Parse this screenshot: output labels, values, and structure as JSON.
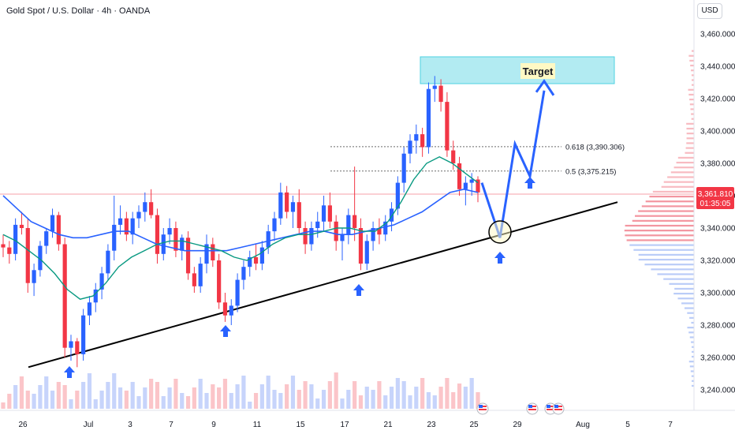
{
  "header": {
    "title": "Gold Spot / U.S. Dollar · 4h · OANDA",
    "currency": "USD"
  },
  "price_axis": {
    "ticks": [
      "3,460.000",
      "3,440.000",
      "3,420.000",
      "3,400.000",
      "3,380.000",
      "3,360.000",
      "3,340.000",
      "3,320.000",
      "3,300.000",
      "3,280.000",
      "3,260.000",
      "3,240.000"
    ],
    "current_price": "3,361.810",
    "countdown": "01:35:05"
  },
  "time_axis": {
    "labels": [
      "26",
      "Jul",
      "3",
      "7",
      "9",
      "11",
      "15",
      "17",
      "21",
      "23",
      "25",
      "29",
      "Aug",
      "5",
      "7"
    ]
  },
  "annotations": {
    "target_label": "Target",
    "fib_618": "0.618 (3,390.306)",
    "fib_05": "0.5 (3,375.215)"
  },
  "colors": {
    "up": "#2962ff",
    "down": "#f23645",
    "ma_fast": "#089981",
    "ma_slow": "#2962ff",
    "target_box": "#b2ebf2",
    "projection": "#2962ff"
  },
  "chart_data": {
    "type": "candlestick",
    "symbol": "XAUUSD",
    "timeframe": "4h",
    "ylim": [
      3235,
      3470
    ],
    "candles": [
      [
        3330,
        3336,
        3322,
        3328
      ],
      [
        3328,
        3332,
        3318,
        3324
      ],
      [
        3324,
        3346,
        3320,
        3342
      ],
      [
        3342,
        3350,
        3336,
        3340
      ],
      [
        3340,
        3346,
        3300,
        3306
      ],
      [
        3306,
        3318,
        3298,
        3314
      ],
      [
        3314,
        3332,
        3310,
        3329
      ],
      [
        3329,
        3340,
        3324,
        3338
      ],
      [
        3338,
        3352,
        3334,
        3348
      ],
      [
        3348,
        3350,
        3326,
        3330
      ],
      [
        3330,
        3334,
        3260,
        3266
      ],
      [
        3266,
        3274,
        3258,
        3270
      ],
      [
        3270,
        3272,
        3254,
        3262
      ],
      [
        3262,
        3290,
        3258,
        3286
      ],
      [
        3286,
        3298,
        3280,
        3294
      ],
      [
        3294,
        3306,
        3288,
        3302
      ],
      [
        3302,
        3316,
        3296,
        3312
      ],
      [
        3312,
        3330,
        3308,
        3326
      ],
      [
        3326,
        3360,
        3320,
        3342
      ],
      [
        3342,
        3354,
        3336,
        3346
      ],
      [
        3346,
        3350,
        3332,
        3336
      ],
      [
        3336,
        3350,
        3330,
        3346
      ],
      [
        3346,
        3354,
        3340,
        3350
      ],
      [
        3350,
        3362,
        3344,
        3356
      ],
      [
        3356,
        3364,
        3346,
        3348
      ],
      [
        3348,
        3352,
        3318,
        3324
      ],
      [
        3324,
        3340,
        3320,
        3336
      ],
      [
        3336,
        3346,
        3330,
        3340
      ],
      [
        3340,
        3344,
        3322,
        3326
      ],
      [
        3326,
        3336,
        3320,
        3334
      ],
      [
        3334,
        3338,
        3308,
        3312
      ],
      [
        3312,
        3316,
        3300,
        3304
      ],
      [
        3304,
        3322,
        3300,
        3318
      ],
      [
        3318,
        3336,
        3312,
        3330
      ],
      [
        3330,
        3334,
        3316,
        3320
      ],
      [
        3320,
        3324,
        3290,
        3294
      ],
      [
        3294,
        3300,
        3282,
        3286
      ],
      [
        3286,
        3296,
        3280,
        3292
      ],
      [
        3292,
        3312,
        3288,
        3308
      ],
      [
        3308,
        3320,
        3302,
        3316
      ],
      [
        3316,
        3326,
        3310,
        3322
      ],
      [
        3322,
        3330,
        3314,
        3318
      ],
      [
        3318,
        3332,
        3314,
        3328
      ],
      [
        3328,
        3342,
        3324,
        3338
      ],
      [
        3338,
        3350,
        3332,
        3346
      ],
      [
        3346,
        3368,
        3342,
        3362
      ],
      [
        3362,
        3366,
        3346,
        3350
      ],
      [
        3350,
        3360,
        3340,
        3356
      ],
      [
        3356,
        3364,
        3336,
        3340
      ],
      [
        3340,
        3344,
        3324,
        3330
      ],
      [
        3330,
        3344,
        3326,
        3340
      ],
      [
        3340,
        3350,
        3334,
        3344
      ],
      [
        3344,
        3360,
        3338,
        3354
      ],
      [
        3354,
        3362,
        3340,
        3344
      ],
      [
        3344,
        3348,
        3326,
        3332
      ],
      [
        3332,
        3340,
        3320,
        3336
      ],
      [
        3336,
        3352,
        3330,
        3348
      ],
      [
        3348,
        3378,
        3332,
        3340
      ],
      [
        3340,
        3346,
        3314,
        3318
      ],
      [
        3318,
        3336,
        3314,
        3332
      ],
      [
        3332,
        3344,
        3326,
        3340
      ],
      [
        3340,
        3346,
        3330,
        3336
      ],
      [
        3336,
        3348,
        3332,
        3344
      ],
      [
        3344,
        3356,
        3338,
        3352
      ],
      [
        3352,
        3372,
        3348,
        3368
      ],
      [
        3368,
        3390,
        3362,
        3386
      ],
      [
        3386,
        3398,
        3380,
        3394
      ],
      [
        3394,
        3404,
        3386,
        3398
      ],
      [
        3398,
        3402,
        3384,
        3390
      ],
      [
        3390,
        3430,
        3386,
        3426
      ],
      [
        3426,
        3434,
        3418,
        3428
      ],
      [
        3428,
        3432,
        3412,
        3418
      ],
      [
        3418,
        3424,
        3384,
        3388
      ],
      [
        3388,
        3394,
        3376,
        3380
      ],
      [
        3380,
        3384,
        3360,
        3364
      ],
      [
        3364,
        3372,
        3354,
        3368
      ],
      [
        3368,
        3374,
        3360,
        3370
      ],
      [
        3370,
        3372,
        3356,
        3362
      ]
    ],
    "ma_fast": [
      3336,
      3332,
      3326,
      3320,
      3312,
      3302,
      3296,
      3298,
      3306,
      3316,
      3322,
      3326,
      3330,
      3332,
      3332,
      3330,
      3328,
      3326,
      3322,
      3320,
      3324,
      3330,
      3334,
      3336,
      3336,
      3338,
      3340,
      3340,
      3338,
      3338,
      3344,
      3356,
      3370,
      3380,
      3384,
      3380,
      3374,
      3368
    ],
    "ma_slow": [
      3360,
      3352,
      3344,
      3340,
      3336,
      3334,
      3334,
      3336,
      3338,
      3338,
      3334,
      3330,
      3328,
      3326,
      3326,
      3326,
      3326,
      3328,
      3330,
      3332,
      3334,
      3336,
      3338,
      3338,
      3336,
      3336,
      3338,
      3340,
      3342,
      3346,
      3350,
      3356,
      3362,
      3364,
      3362
    ],
    "trendline": {
      "start_price": 3254,
      "end_price": 3356
    },
    "fib_levels": [
      {
        "label": "0.618 (3,390.306)",
        "price": 3390.306
      },
      {
        "label": "0.5 (3,375.215)",
        "price": 3375.215
      }
    ],
    "target_zone": [
      3431,
      3446
    ],
    "projection_prices": [
      3368,
      3334,
      3392,
      3372,
      3425
    ],
    "current_price": 3361.81
  }
}
